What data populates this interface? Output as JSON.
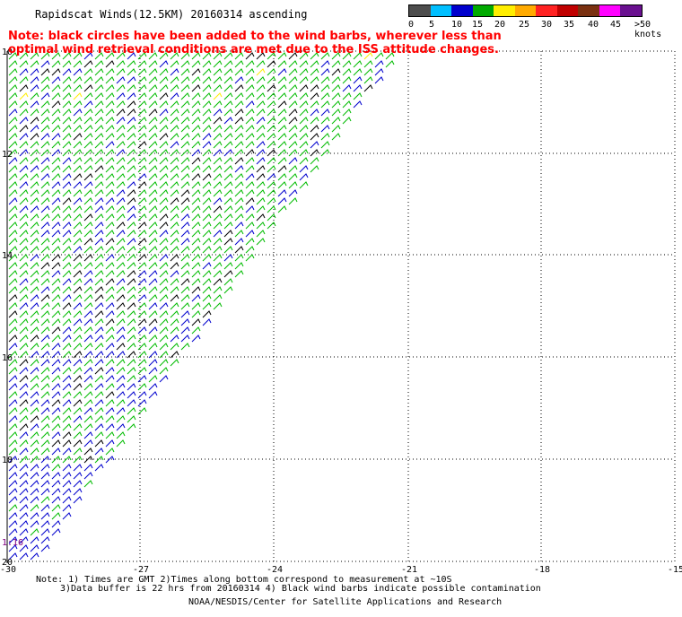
{
  "title": "Rapidscat Winds(12.5KM) 20160314 ascending",
  "warning": {
    "line1": "Note: black circles have been added to the wind barbs, wherever less than",
    "line2": "optimal wind retrieval conditions are met due to the ISS attitude changes."
  },
  "legend": {
    "labels": [
      "0",
      "5",
      "10",
      "15",
      "20",
      "25",
      "30",
      "35",
      "40",
      "45",
      ">50 knots"
    ],
    "colors": [
      "#4d4d4d",
      "#00bfff",
      "#0000cd",
      "#00aa00",
      "#ffee00",
      "#ffaa00",
      "#ff2222",
      "#c00000",
      "#7a3010",
      "#ff00ff",
      "#6a1090"
    ]
  },
  "axes": {
    "lat_labels": [
      "10",
      "12",
      "14",
      "16",
      "18",
      "20"
    ],
    "lon_labels": [
      "-30",
      "-27",
      "-24",
      "-21",
      "-18",
      "-15"
    ]
  },
  "time_label": "1:16",
  "footer": {
    "note1": "Note: 1) Times are GMT 2)Times along bottom correspond to measurement at ~10S",
    "note2": "3)Data buffer is 22 hrs from 20160314 4) Black wind barbs indicate possible contamination",
    "credit": "NOAA/NESDIS/Center for Satellite Applications and Research"
  }
}
